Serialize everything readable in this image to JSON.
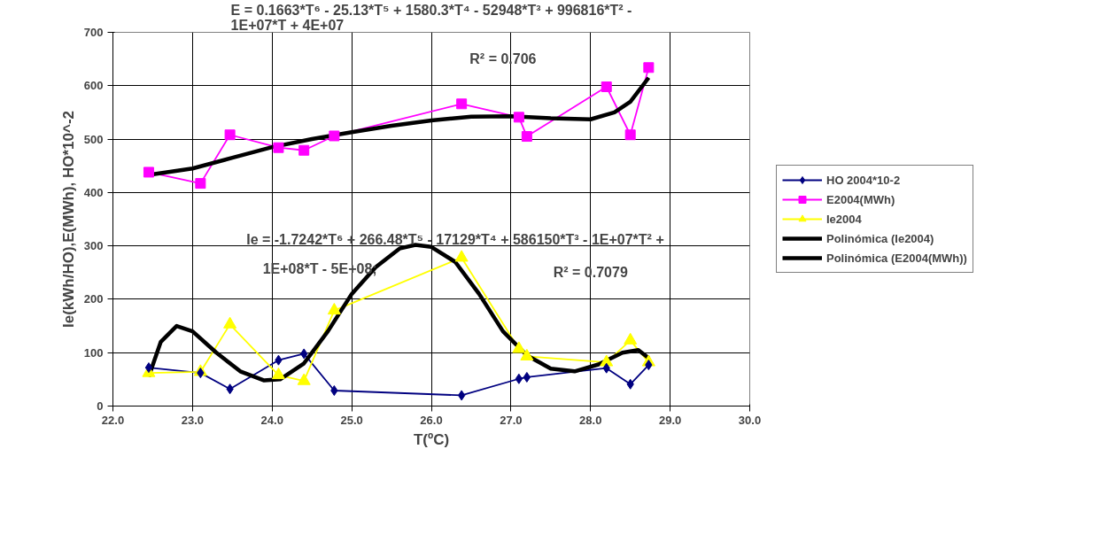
{
  "chart_data": {
    "type": "line",
    "xlabel": "T(ºC)",
    "ylabel": "Ie(kWh/HO),E(MWh), HO*10^-2",
    "annotations": [
      "E = 0.1663*T⁶ - 25.13*T⁵ + 1580.3*T⁴ - 52948*T³ + 996816*T² - 1E+07*T + 4E+07",
      "R² = 0.706",
      "Ie = -1.7242*T⁶ + 266.48*T⁵ - 17129*T⁴ + 586150*T³ - 1E+07*T² + 1E+08*T - 5E+08;",
      "R² = 0.7079"
    ],
    "x": [
      22.45,
      23.1,
      23.47,
      24.08,
      24.4,
      24.78,
      26.38,
      27.1,
      27.2,
      28.2,
      28.5,
      28.73
    ],
    "series": [
      {
        "name": "HO 2004*10-2",
        "color": "#000080",
        "marker": "diamond",
        "values": [
          72,
          62,
          32,
          86,
          98,
          29,
          20,
          51,
          54,
          71,
          41,
          77
        ]
      },
      {
        "name": "E2004(MWh)",
        "color": "#ff00ff",
        "marker": "square",
        "values": [
          438,
          417,
          508,
          484,
          479,
          506,
          566,
          541,
          505,
          598,
          508,
          634
        ]
      },
      {
        "name": "Ie2004",
        "color": "#ffff00",
        "marker": "triangle",
        "values": [
          62,
          64,
          153,
          58,
          47,
          179,
          278,
          107,
          93,
          82,
          123,
          82
        ]
      },
      {
        "name": "Polinómica (Ie2004)",
        "color": "#000000",
        "marker": "none",
        "x": [
          22.45,
          22.6,
          22.8,
          23.0,
          23.3,
          23.6,
          23.9,
          24.1,
          24.4,
          24.7,
          25.0,
          25.3,
          25.6,
          25.8,
          26.0,
          26.3,
          26.6,
          26.9,
          27.2,
          27.5,
          27.8,
          28.1,
          28.4,
          28.6,
          28.73
        ],
        "values": [
          55,
          120,
          150,
          140,
          100,
          65,
          48,
          50,
          80,
          140,
          210,
          260,
          295,
          302,
          298,
          270,
          210,
          140,
          95,
          70,
          65,
          78,
          100,
          105,
          90
        ]
      },
      {
        "name": "Polinómica (E2004(MWh))",
        "color": "#000000",
        "marker": "none",
        "x": [
          22.45,
          23.0,
          23.5,
          24.0,
          24.5,
          25.0,
          25.5,
          26.0,
          26.5,
          27.0,
          27.5,
          28.0,
          28.3,
          28.5,
          28.73
        ],
        "values": [
          433,
          445,
          465,
          485,
          500,
          513,
          525,
          535,
          542,
          543,
          539,
          537,
          550,
          570,
          615
        ]
      }
    ],
    "xlim": [
      22,
      30
    ],
    "xticks": [
      {
        "value": 22,
        "label": "22.0"
      },
      {
        "value": 23,
        "label": "23.0"
      },
      {
        "value": 24,
        "label": "24.0"
      },
      {
        "value": 25,
        "label": "25.0"
      },
      {
        "value": 26,
        "label": "26.0"
      },
      {
        "value": 27,
        "label": "27.0"
      },
      {
        "value": 28,
        "label": "28.0"
      },
      {
        "value": 29,
        "label": "29.0"
      },
      {
        "value": 30,
        "label": "30.0"
      }
    ],
    "ylim": [
      0,
      700
    ],
    "yticks": [
      0,
      100,
      200,
      300,
      400,
      500,
      600,
      700
    ],
    "grid": true,
    "legend": "right"
  }
}
